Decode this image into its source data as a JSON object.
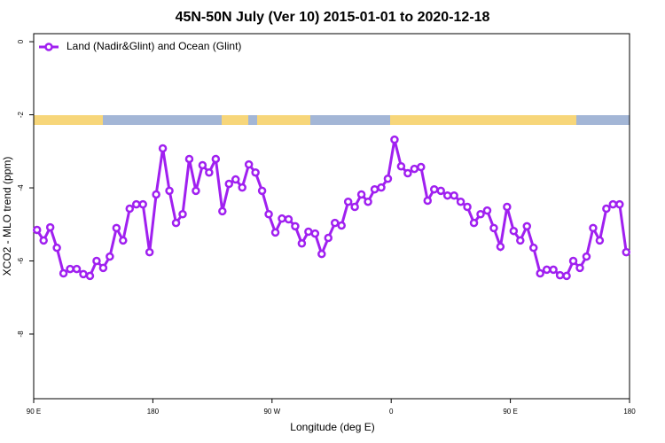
{
  "chart_data": {
    "type": "line",
    "title": "45N-50N July (Ver 10)   2015-01-01 to 2020-12-18",
    "xlabel": "Longitude (deg E)",
    "ylabel": "XCO2 - MLO trend (ppm)",
    "x": [
      92.5,
      97.5,
      102.5,
      107.5,
      112.5,
      117.5,
      122.5,
      127.5,
      132.5,
      137.5,
      142.5,
      147.5,
      152.5,
      157.5,
      162.5,
      167.5,
      172.5,
      177.5,
      182.5,
      187.5,
      192.5,
      197.5,
      202.5,
      207.5,
      212.5,
      217.5,
      222.5,
      227.5,
      232.5,
      237.5,
      242.5,
      247.5,
      252.5,
      257.5,
      262.5,
      267.5,
      272.5,
      277.5,
      282.5,
      287.5,
      292.5,
      297.5,
      302.5,
      307.5,
      312.5,
      317.5,
      322.5,
      327.5,
      332.5,
      337.5,
      342.5,
      347.5,
      352.5,
      357.5,
      362.5,
      367.5,
      372.5,
      377.5,
      382.5,
      387.5,
      392.5,
      397.5,
      402.5,
      407.5,
      412.5,
      417.5,
      422.5,
      427.5,
      432.5,
      437.5,
      442.5,
      447.5,
      452.5,
      457.5,
      462.5,
      467.5,
      472.5,
      477.5,
      482.5,
      487.5,
      492.5,
      497.5,
      502.5,
      507.5,
      512.5,
      517.5,
      522.5,
      527.5,
      532.5,
      537.5
    ],
    "series": [
      {
        "name": "Land (Nadir&Glint) and Ocean (Glint)",
        "color": "#a020f0",
        "values": [
          -5.15,
          -5.44,
          -5.08,
          -5.64,
          -6.34,
          -6.22,
          -6.22,
          -6.36,
          -6.41,
          -6.0,
          -6.19,
          -5.88,
          -5.1,
          -5.44,
          -4.57,
          -4.45,
          -4.45,
          -5.76,
          -4.18,
          -2.92,
          -4.08,
          -4.96,
          -4.72,
          -3.21,
          -4.08,
          -3.38,
          -3.58,
          -3.21,
          -4.64,
          -3.89,
          -3.77,
          -3.99,
          -3.36,
          -3.58,
          -4.08,
          -4.72,
          -5.22,
          -4.84,
          -4.86,
          -5.05,
          -5.52,
          -5.2,
          -5.25,
          -5.81,
          -5.37,
          -4.96,
          -5.03,
          -4.38,
          -4.52,
          -4.18,
          -4.38,
          -4.04,
          -3.99,
          -3.75,
          -2.68,
          -3.41,
          -3.6,
          -3.48,
          -3.43,
          -4.35,
          -4.04,
          -4.08,
          -4.21,
          -4.21,
          -4.38,
          -4.52,
          -4.96,
          -4.72,
          -4.62,
          -5.1,
          -5.61,
          -4.52,
          -5.18,
          -5.44,
          -5.05,
          -5.64,
          -6.34,
          -6.24,
          -6.24,
          -6.39,
          -6.41,
          -6.0,
          -6.19,
          -5.88,
          -5.1,
          -5.44,
          -4.57,
          -4.45,
          -4.45,
          -5.76
        ]
      }
    ],
    "xlim": [
      90,
      540
    ],
    "xticks": [
      {
        "value": 90,
        "label": "90 E"
      },
      180,
      {
        "value": 270,
        "label": "90 W"
      },
      {
        "value": 360,
        "label": "0"
      },
      {
        "value": 450,
        "label": "90 E"
      },
      {
        "value": 540,
        "label": "180"
      }
    ],
    "ylim": [
      -9.77,
      0.22
    ],
    "yticks": [
      0,
      -2,
      -4,
      -6,
      -8
    ],
    "legend": "top-left"
  }
}
